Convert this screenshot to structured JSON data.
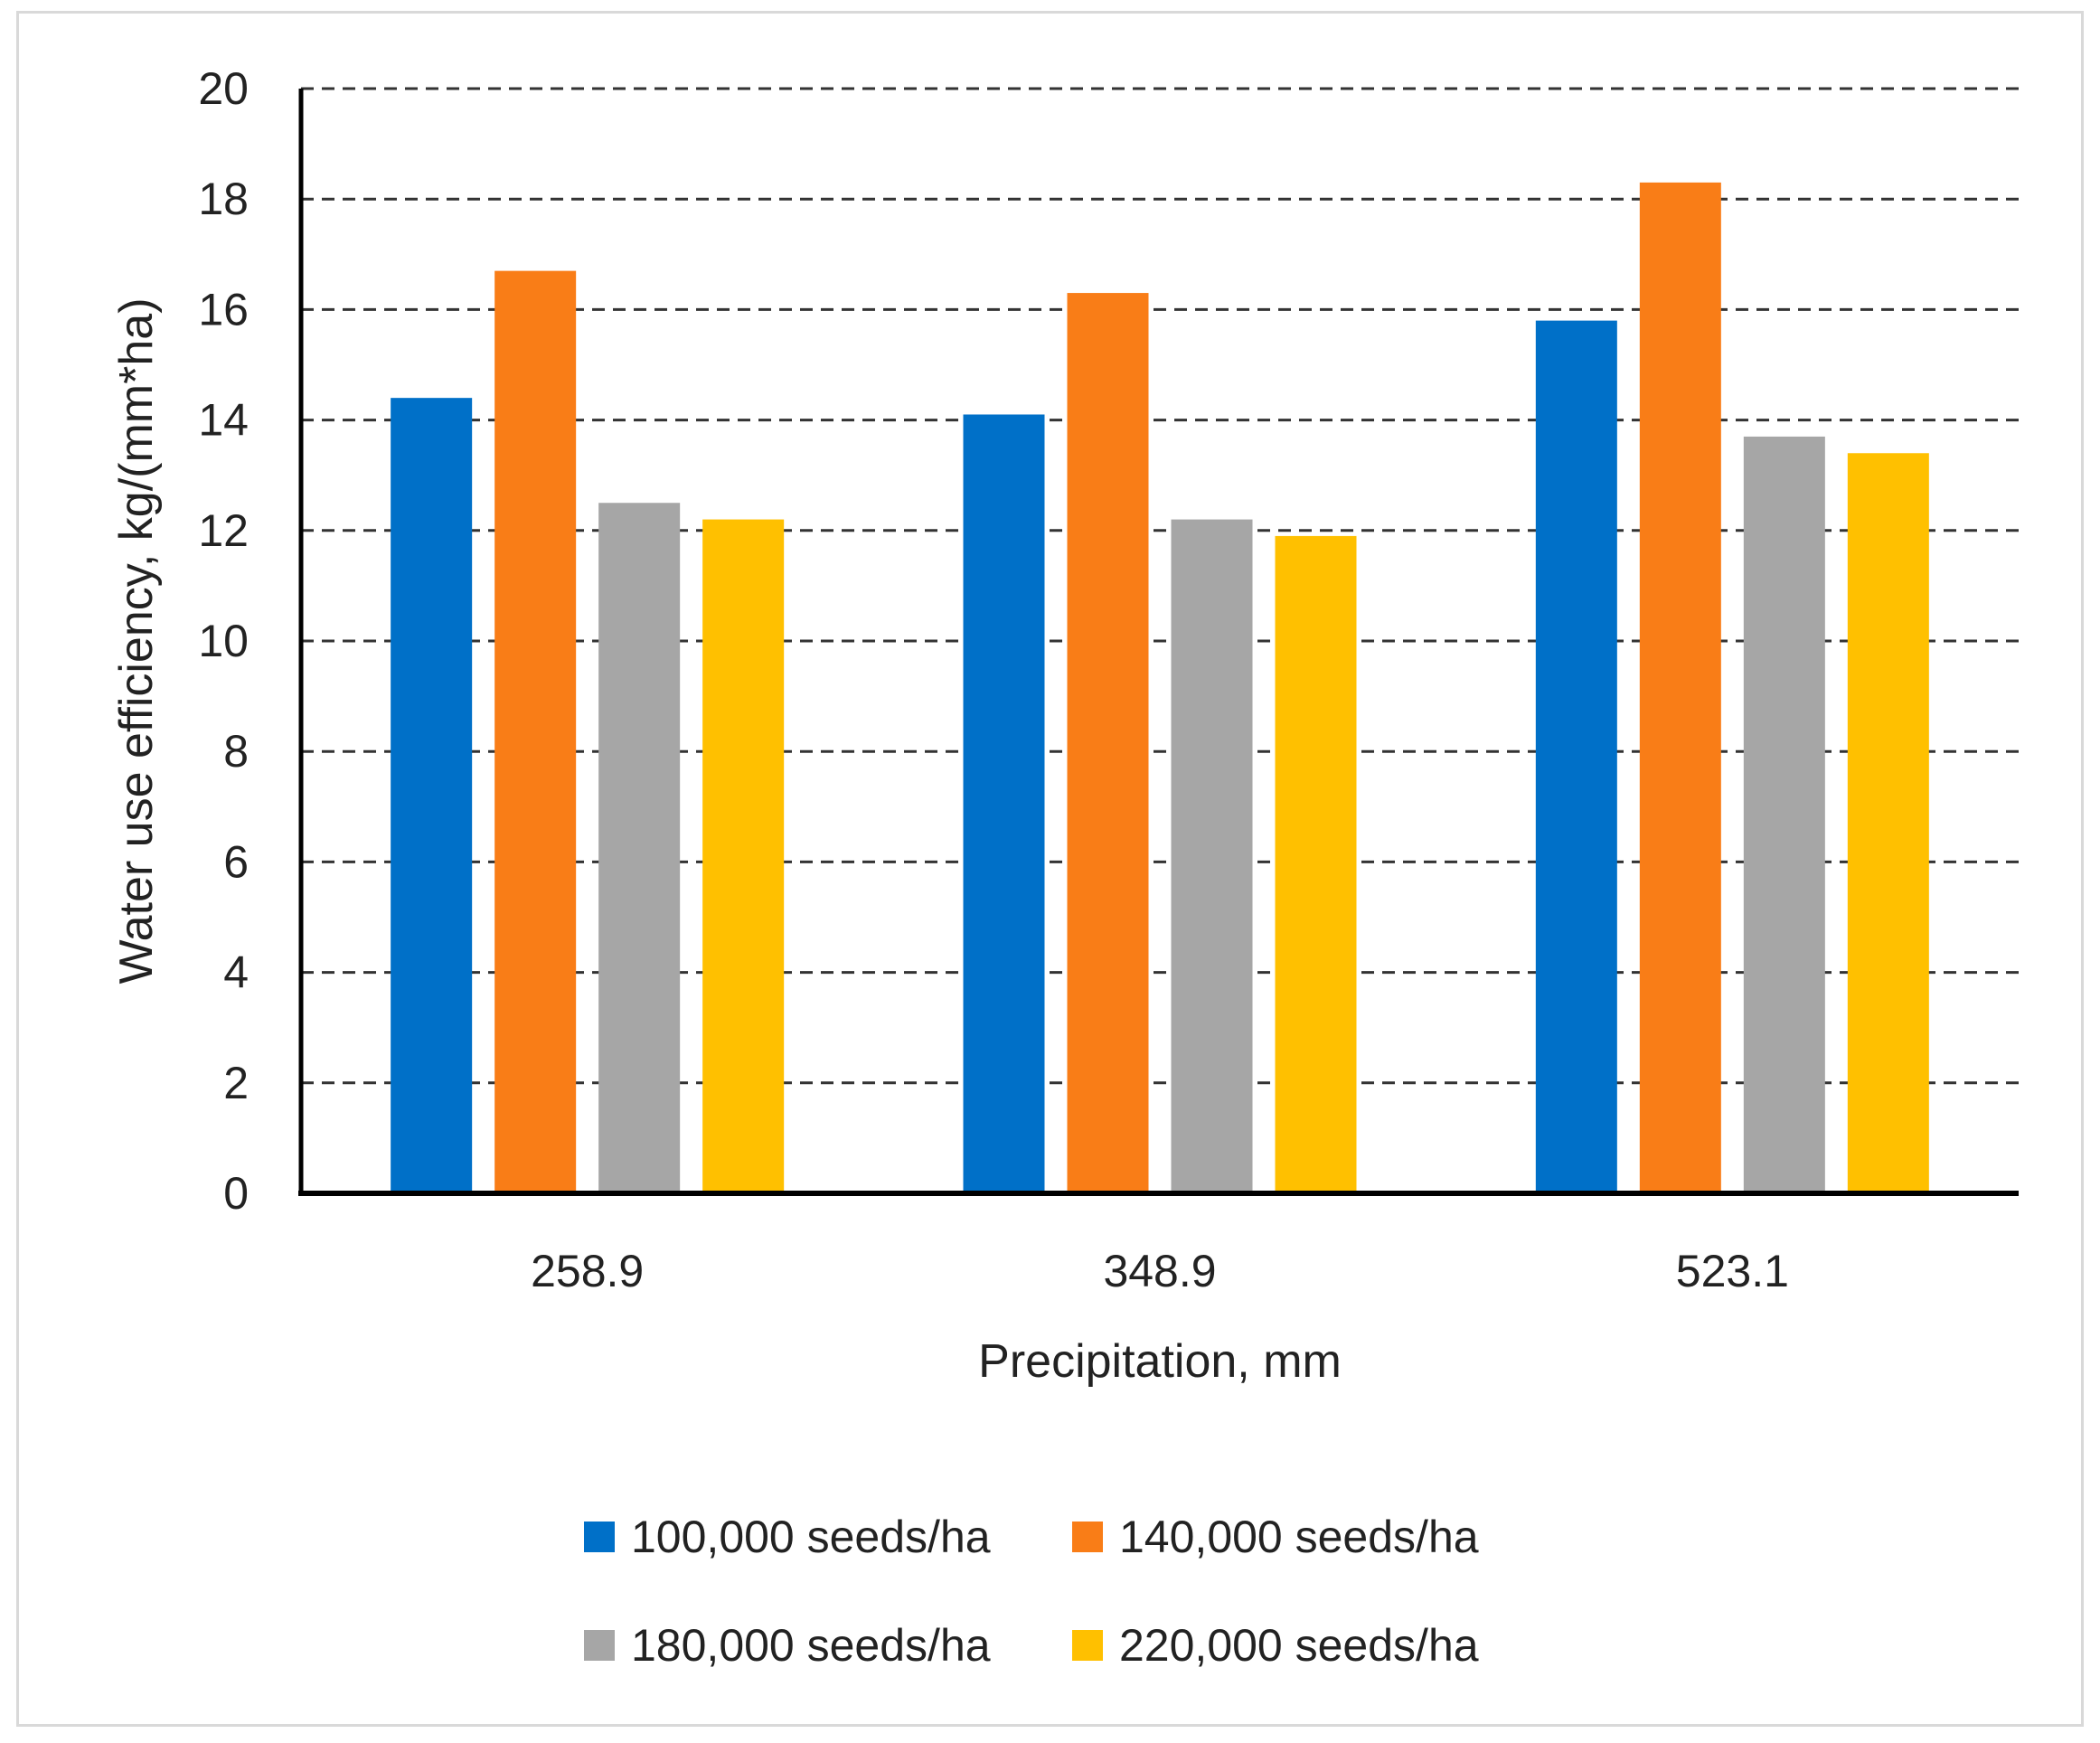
{
  "chart_data": {
    "type": "bar",
    "title": "",
    "xlabel": "Precipitation, mm",
    "ylabel": "Water use efficiency, kg/(mm*ha)",
    "categories": [
      "258.9",
      "348.9",
      "523.1"
    ],
    "ylim": [
      0,
      20
    ],
    "yticks": [
      "0",
      "2",
      "4",
      "6",
      "8",
      "10",
      "12",
      "14",
      "16",
      "18",
      "20"
    ],
    "grid": true,
    "legend_position": "bottom",
    "series": [
      {
        "name": "100,000 seeds/ha",
        "color": "#0070C8",
        "values": [
          14.4,
          14.1,
          15.8
        ]
      },
      {
        "name": "140,000 seeds/ha",
        "color": "#F97D17",
        "values": [
          16.7,
          16.3,
          18.3
        ]
      },
      {
        "name": "180,000 seeds/ha",
        "color": "#A6A6A6",
        "values": [
          12.5,
          12.2,
          13.7
        ]
      },
      {
        "name": "220,000 seeds/ha",
        "color": "#FFC000",
        "values": [
          12.2,
          11.9,
          13.4
        ]
      }
    ]
  }
}
